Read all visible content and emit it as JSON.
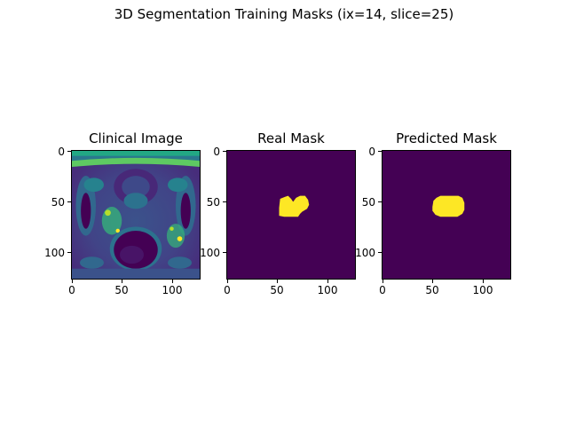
{
  "figure": {
    "suptitle": "3D Segmentation Training Masks (ix=14, slice=25)"
  },
  "panels": [
    {
      "title": "Clinical Image",
      "content": "grayscale MRI slice rendered with viridis colormap",
      "xticks": [
        "0",
        "50",
        "100"
      ],
      "yticks": [
        "0",
        "50",
        "100"
      ]
    },
    {
      "title": "Real Mask",
      "content": "binary mask: yellow blob on dark purple background",
      "xticks": [
        "0",
        "50",
        "100"
      ],
      "yticks": [
        "0",
        "50",
        "100"
      ]
    },
    {
      "title": "Predicted Mask",
      "content": "binary mask: yellow blob on dark purple background",
      "xticks": [
        "0",
        "50",
        "100"
      ],
      "yticks": [
        "0",
        "50",
        "100"
      ]
    }
  ],
  "colors": {
    "background": "#440154",
    "foreground": "#fde725",
    "mid_teal": "#21918c",
    "mid_blue": "#3b528b",
    "light_green": "#5ec962"
  }
}
